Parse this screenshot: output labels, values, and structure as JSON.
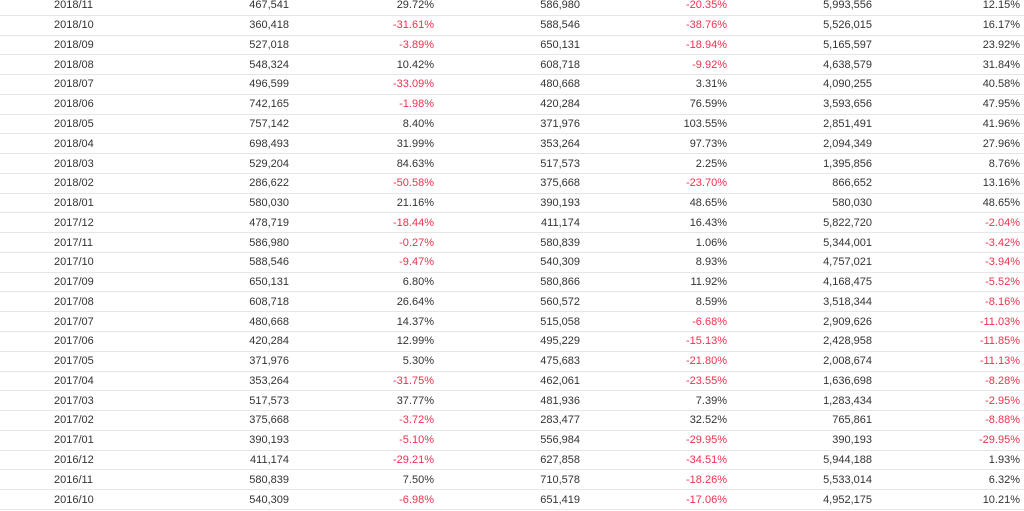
{
  "colors": {
    "text": "#333333",
    "negative": "#f0314d",
    "row_divider": "#e6e6e6"
  },
  "rows": [
    [
      "2018/11",
      "467,541",
      "29.72%",
      "586,980",
      "-20.35%",
      "5,993,556",
      "12.15%"
    ],
    [
      "2018/10",
      "360,418",
      "-31.61%",
      "588,546",
      "-38.76%",
      "5,526,015",
      "16.17%"
    ],
    [
      "2018/09",
      "527,018",
      "-3.89%",
      "650,131",
      "-18.94%",
      "5,165,597",
      "23.92%"
    ],
    [
      "2018/08",
      "548,324",
      "10.42%",
      "608,718",
      "-9.92%",
      "4,638,579",
      "31.84%"
    ],
    [
      "2018/07",
      "496,599",
      "-33.09%",
      "480,668",
      "3.31%",
      "4,090,255",
      "40.58%"
    ],
    [
      "2018/06",
      "742,165",
      "-1.98%",
      "420,284",
      "76.59%",
      "3,593,656",
      "47.95%"
    ],
    [
      "2018/05",
      "757,142",
      "8.40%",
      "371,976",
      "103.55%",
      "2,851,491",
      "41.96%"
    ],
    [
      "2018/04",
      "698,493",
      "31.99%",
      "353,264",
      "97.73%",
      "2,094,349",
      "27.96%"
    ],
    [
      "2018/03",
      "529,204",
      "84.63%",
      "517,573",
      "2.25%",
      "1,395,856",
      "8.76%"
    ],
    [
      "2018/02",
      "286,622",
      "-50.58%",
      "375,668",
      "-23.70%",
      "866,652",
      "13.16%"
    ],
    [
      "2018/01",
      "580,030",
      "21.16%",
      "390,193",
      "48.65%",
      "580,030",
      "48.65%"
    ],
    [
      "2017/12",
      "478,719",
      "-18.44%",
      "411,174",
      "16.43%",
      "5,822,720",
      "-2.04%"
    ],
    [
      "2017/11",
      "586,980",
      "-0.27%",
      "580,839",
      "1.06%",
      "5,344,001",
      "-3.42%"
    ],
    [
      "2017/10",
      "588,546",
      "-9.47%",
      "540,309",
      "8.93%",
      "4,757,021",
      "-3.94%"
    ],
    [
      "2017/09",
      "650,131",
      "6.80%",
      "580,866",
      "11.92%",
      "4,168,475",
      "-5.52%"
    ],
    [
      "2017/08",
      "608,718",
      "26.64%",
      "560,572",
      "8.59%",
      "3,518,344",
      "-8.16%"
    ],
    [
      "2017/07",
      "480,668",
      "14.37%",
      "515,058",
      "-6.68%",
      "2,909,626",
      "-11.03%"
    ],
    [
      "2017/06",
      "420,284",
      "12.99%",
      "495,229",
      "-15.13%",
      "2,428,958",
      "-11.85%"
    ],
    [
      "2017/05",
      "371,976",
      "5.30%",
      "475,683",
      "-21.80%",
      "2,008,674",
      "-11.13%"
    ],
    [
      "2017/04",
      "353,264",
      "-31.75%",
      "462,061",
      "-23.55%",
      "1,636,698",
      "-8.28%"
    ],
    [
      "2017/03",
      "517,573",
      "37.77%",
      "481,936",
      "7.39%",
      "1,283,434",
      "-2.95%"
    ],
    [
      "2017/02",
      "375,668",
      "-3.72%",
      "283,477",
      "32.52%",
      "765,861",
      "-8.88%"
    ],
    [
      "2017/01",
      "390,193",
      "-5.10%",
      "556,984",
      "-29.95%",
      "390,193",
      "-29.95%"
    ],
    [
      "2016/12",
      "411,174",
      "-29.21%",
      "627,858",
      "-34.51%",
      "5,944,188",
      "1.93%"
    ],
    [
      "2016/11",
      "580,839",
      "7.50%",
      "710,578",
      "-18.26%",
      "5,533,014",
      "6.32%"
    ],
    [
      "2016/10",
      "540,309",
      "-6.98%",
      "651,419",
      "-17.06%",
      "4,952,175",
      "10.21%"
    ]
  ]
}
